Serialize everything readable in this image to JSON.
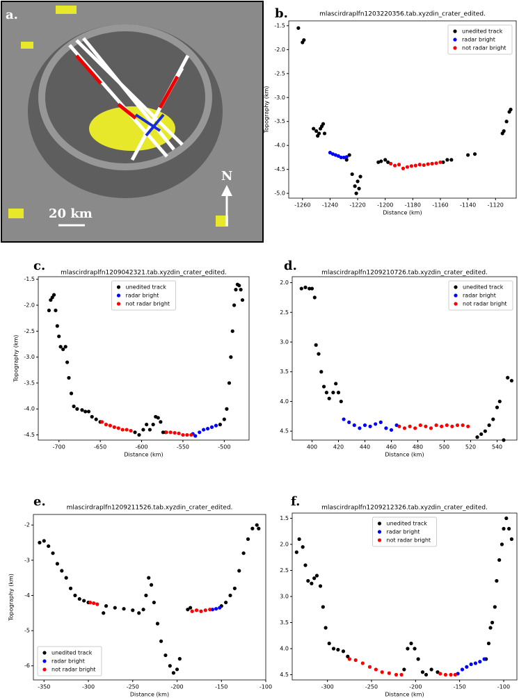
{
  "image_panel": {
    "label": "a.",
    "scale": "20 km",
    "north": "N"
  },
  "chart_data": [
    {
      "type": "scatter",
      "panel_label": "b.",
      "title": "mlascirdraplfn1203220356.tab.xyzdin_crater_edited.",
      "x_label": "Distance (km)",
      "y_label": "Topography (km)",
      "legend": "upper right",
      "xlim": [
        -1270,
        -1105
      ],
      "ylim": [
        -5.1,
        -1.4
      ],
      "xticks": [
        -1260,
        -1240,
        -1220,
        -1200,
        -1180,
        -1160,
        -1140,
        -1120
      ],
      "yticks": [
        -1.5,
        {
          "value": -2,
          "label": "-2.0"
        },
        -2.5,
        {
          "value": -3,
          "label": "-3.0"
        },
        -3.5,
        {
          "value": -4,
          "label": "-4.0"
        },
        -4.5,
        {
          "value": -5,
          "label": "-5.0"
        }
      ],
      "series": [
        {
          "name": "unedited track",
          "color": "#000000",
          "x": [
            -1263,
            -1260,
            -1259,
            -1252,
            -1250,
            -1249,
            -1248,
            -1247,
            -1246,
            -1245,
            -1244,
            -1228,
            -1226,
            -1224,
            -1222,
            -1221,
            -1220,
            -1219,
            -1218,
            -1205,
            -1203,
            -1200,
            -1198,
            -1158,
            -1155,
            -1152,
            -1140,
            -1135,
            -1115,
            -1114,
            -1112,
            -1110,
            -1109
          ],
          "values": [
            -1.55,
            -1.85,
            -1.8,
            -3.65,
            -3.7,
            -3.8,
            -3.75,
            -3.65,
            -3.6,
            -3.55,
            -3.75,
            -4.3,
            -4.2,
            -4.6,
            -4.85,
            -5.0,
            -4.75,
            -4.9,
            -4.65,
            -4.35,
            -4.33,
            -4.3,
            -4.35,
            -4.35,
            -4.3,
            -4.3,
            -4.2,
            -4.18,
            -3.75,
            -3.7,
            -3.5,
            -3.3,
            -3.25
          ]
        },
        {
          "name": "radar bright",
          "color": "#0000ff",
          "x": [
            -1240,
            -1238,
            -1236,
            -1234,
            -1232,
            -1230,
            -1228
          ],
          "values": [
            -4.15,
            -4.18,
            -4.2,
            -4.22,
            -4.25,
            -4.25,
            -4.24
          ]
        },
        {
          "name": "not radar bright",
          "color": "#ff0000",
          "x": [
            -1196,
            -1193,
            -1190,
            -1187,
            -1184,
            -1181,
            -1178,
            -1175,
            -1172,
            -1169,
            -1166,
            -1163,
            -1160
          ],
          "values": [
            -4.38,
            -4.42,
            -4.4,
            -4.48,
            -4.45,
            -4.43,
            -4.42,
            -4.4,
            -4.41,
            -4.39,
            -4.38,
            -4.37,
            -4.35
          ]
        }
      ]
    },
    {
      "type": "scatter",
      "panel_label": "c.",
      "title": "mlascirdraplfn1209042321.tab.xyzdin_crater_edited.",
      "x_label": "Distance (km)",
      "y_label": "Topography (km)",
      "legend": "upper center",
      "xlim": [
        -725,
        -470
      ],
      "ylim": [
        -4.6,
        -1.45
      ],
      "xticks": [
        -700,
        -650,
        -600,
        -550,
        -500
      ],
      "yticks": [
        -1.5,
        {
          "value": -2,
          "label": "-2.0"
        },
        -2.5,
        {
          "value": -3,
          "label": "-3.0"
        },
        -3.5,
        {
          "value": -4,
          "label": "-4.0"
        },
        -4.5
      ],
      "series": [
        {
          "name": "unedited track",
          "color": "#000000",
          "x": [
            -712,
            -710,
            -708,
            -706,
            -704,
            -702,
            -700,
            -698,
            -695,
            -692,
            -690,
            -688,
            -685,
            -682,
            -678,
            -672,
            -668,
            -664,
            -660,
            -655,
            -650,
            -608,
            -603,
            -598,
            -594,
            -590,
            -586,
            -583,
            -580,
            -577,
            -574,
            -571,
            -505,
            -500,
            -497,
            -494,
            -492,
            -490,
            -488,
            -486,
            -484,
            -482,
            -480,
            -478
          ],
          "values": [
            -2.1,
            -1.9,
            -1.85,
            -1.8,
            -2.1,
            -2.4,
            -2.6,
            -2.8,
            -2.85,
            -2.8,
            -3.1,
            -3.4,
            -3.7,
            -3.95,
            -4.0,
            -4.02,
            -4.05,
            -4.05,
            -4.15,
            -4.2,
            -4.25,
            -4.45,
            -4.5,
            -4.4,
            -4.3,
            -4.4,
            -4.3,
            -4.15,
            -4.17,
            -4.25,
            -4.45,
            -4.45,
            -4.3,
            -4.2,
            -4.0,
            -3.5,
            -3.0,
            -2.5,
            -2.0,
            -1.7,
            -1.6,
            -1.62,
            -1.7,
            -1.9
          ]
        },
        {
          "name": "radar bright",
          "color": "#0000ff",
          "x": [
            -538,
            -535,
            -530,
            -525,
            -520,
            -515,
            -510
          ],
          "values": [
            -4.48,
            -4.52,
            -4.45,
            -4.4,
            -4.38,
            -4.35,
            -4.32
          ]
        },
        {
          "name": "not radar bright",
          "color": "#ff0000",
          "x": [
            -648,
            -643,
            -638,
            -633,
            -628,
            -623,
            -618,
            -613,
            -570,
            -565,
            -560,
            -555,
            -550,
            -545,
            -540
          ],
          "values": [
            -4.25,
            -4.3,
            -4.32,
            -4.35,
            -4.37,
            -4.4,
            -4.4,
            -4.42,
            -4.45,
            -4.45,
            -4.46,
            -4.47,
            -4.5,
            -4.5,
            -4.5
          ]
        }
      ]
    },
    {
      "type": "scatter",
      "panel_label": "d.",
      "title": "mlascirdraplfn1209210726.tab.xyzdin_crater_edited.",
      "x_label": "Distance (km)",
      "legend": "upper right",
      "xlim": [
        385,
        555
      ],
      "ylim": [
        -4.65,
        -1.9
      ],
      "xticks": [
        400,
        420,
        440,
        460,
        480,
        500,
        520,
        540
      ],
      "yticks": [
        {
          "value": -2,
          "label": "2.0"
        },
        {
          "value": -2.5,
          "label": "2.5"
        },
        {
          "value": -3,
          "label": "3.0"
        },
        {
          "value": -3.5,
          "label": "3.5"
        },
        {
          "value": -4,
          "label": "4.0"
        },
        {
          "value": -4.5,
          "label": "4.5"
        }
      ],
      "series": [
        {
          "name": "unedited track",
          "color": "#000000",
          "x": [
            392,
            395,
            398,
            400,
            402,
            403,
            405,
            407,
            409,
            411,
            413,
            416,
            418,
            420,
            422,
            525,
            528,
            531,
            534,
            537,
            540,
            542,
            545,
            548,
            551
          ],
          "values": [
            -2.1,
            -2.08,
            -2.1,
            -2.1,
            -2.25,
            -3.05,
            -3.2,
            -3.5,
            -3.75,
            -3.85,
            -3.95,
            -3.85,
            -3.7,
            -3.85,
            -4.0,
            -4.6,
            -4.55,
            -4.5,
            -4.4,
            -4.3,
            -4.1,
            -4.0,
            -4.65,
            -3.6,
            -3.65
          ]
        },
        {
          "name": "radar bright",
          "color": "#0000ff",
          "x": [
            424,
            428,
            432,
            436,
            440,
            444,
            448,
            452,
            456,
            460,
            464
          ],
          "values": [
            -4.3,
            -4.35,
            -4.4,
            -4.45,
            -4.4,
            -4.42,
            -4.38,
            -4.35,
            -4.45,
            -4.48,
            -4.4
          ]
        },
        {
          "name": "not radar bright",
          "color": "#ff0000",
          "x": [
            466,
            470,
            474,
            478,
            482,
            486,
            490,
            494,
            498,
            502,
            506,
            510,
            514,
            518
          ],
          "values": [
            -4.42,
            -4.45,
            -4.42,
            -4.45,
            -4.4,
            -4.42,
            -4.45,
            -4.4,
            -4.42,
            -4.4,
            -4.42,
            -4.4,
            -4.4,
            -4.42
          ]
        }
      ]
    },
    {
      "type": "scatter",
      "panel_label": "e.",
      "title": "mlascirdraplfn1209211526.tab.xyzdin_crater_edited.",
      "x_label": "Distance (km)",
      "y_label": "Topography (km)",
      "legend": "lower left",
      "xlim": [
        -362,
        -100
      ],
      "ylim": [
        -6.4,
        -1.7
      ],
      "xticks": [
        -350,
        -300,
        -250,
        -200,
        -150,
        -100
      ],
      "yticks": [
        -2,
        -3,
        -4,
        -5,
        -6
      ],
      "series": [
        {
          "name": "unedited track",
          "color": "#000000",
          "x": [
            -355,
            -350,
            -345,
            -340,
            -335,
            -330,
            -325,
            -320,
            -315,
            -310,
            -305,
            -300,
            -283,
            -280,
            -270,
            -260,
            -250,
            -243,
            -238,
            -235,
            -232,
            -229,
            -226,
            -222,
            -218,
            -213,
            -208,
            -204,
            -200,
            -197,
            -188,
            -185,
            -150,
            -145,
            -140,
            -135,
            -130,
            -125,
            -120,
            -115,
            -110,
            -108
          ],
          "values": [
            -2.5,
            -2.45,
            -2.6,
            -2.8,
            -3.1,
            -3.3,
            -3.5,
            -3.8,
            -4.0,
            -4.1,
            -4.15,
            -4.2,
            -4.5,
            -4.3,
            -4.35,
            -4.38,
            -4.42,
            -4.5,
            -4.4,
            -4.0,
            -3.5,
            -3.7,
            -4.2,
            -4.8,
            -5.3,
            -5.7,
            -6.0,
            -6.2,
            -6.1,
            -5.8,
            -4.4,
            -4.35,
            -4.3,
            -4.2,
            -4.0,
            -3.8,
            -3.3,
            -2.8,
            -2.4,
            -2.1,
            -2.0,
            -2.1
          ]
        },
        {
          "name": "radar bright",
          "color": "#0000ff",
          "x": [
            -160,
            -156,
            -152
          ],
          "values": [
            -4.4,
            -4.38,
            -4.35
          ]
        },
        {
          "name": "not radar bright",
          "color": "#ff0000",
          "x": [
            -298,
            -294,
            -290,
            -183,
            -178,
            -173,
            -168,
            -163
          ],
          "values": [
            -4.2,
            -4.22,
            -4.25,
            -4.45,
            -4.42,
            -4.45,
            -4.42,
            -4.4
          ]
        }
      ]
    },
    {
      "type": "scatter",
      "panel_label": "f.",
      "title": "mlascirdraplfn1209212326.tab.xyzdin_crater_edited.",
      "x_label": "Distance (km)",
      "legend": "upper center",
      "xlim": [
        -340,
        -85
      ],
      "ylim": [
        -4.6,
        -1.4
      ],
      "xticks": [
        -300,
        -250,
        -200,
        -150,
        -100
      ],
      "yticks": [
        {
          "value": -1.5,
          "label": "1.5"
        },
        {
          "value": -2,
          "label": "2.0"
        },
        {
          "value": -2.5,
          "label": "2.5"
        },
        {
          "value": -3,
          "label": "3.0"
        },
        {
          "value": -3.5,
          "label": "3.5"
        },
        {
          "value": -4,
          "label": "4.0"
        },
        {
          "value": -4.5,
          "label": "4.5"
        }
      ],
      "series": [
        {
          "name": "unedited track",
          "color": "#000000",
          "x": [
            -335,
            -332,
            -328,
            -325,
            -322,
            -318,
            -315,
            -312,
            -308,
            -305,
            -302,
            -298,
            -293,
            -288,
            -282,
            -277,
            -213,
            -209,
            -205,
            -201,
            -197,
            -192,
            -188,
            -182,
            -175,
            -120,
            -117,
            -115,
            -113,
            -110,
            -108,
            -105,
            -102,
            -100,
            -97,
            -94,
            -91
          ],
          "values": [
            -2.15,
            -1.9,
            -2.05,
            -2.4,
            -2.7,
            -2.75,
            -2.65,
            -2.6,
            -2.8,
            -3.2,
            -3.6,
            -3.9,
            -4.0,
            -4.02,
            -4.05,
            -4.15,
            -4.4,
            -4.0,
            -3.9,
            -4.0,
            -4.2,
            -4.45,
            -4.5,
            -4.4,
            -4.45,
            -4.2,
            -3.9,
            -3.6,
            -3.5,
            -3.2,
            -2.7,
            -2.3,
            -2.0,
            -1.7,
            -1.5,
            -1.7,
            -1.9
          ]
        },
        {
          "name": "radar bright",
          "color": "#0000ff",
          "x": [
            -152,
            -147,
            -142,
            -137,
            -132,
            -127,
            -122
          ],
          "values": [
            -4.48,
            -4.4,
            -4.35,
            -4.3,
            -4.28,
            -4.25,
            -4.2
          ]
        },
        {
          "name": "not radar bright",
          "color": "#ff0000",
          "x": [
            -275,
            -268,
            -260,
            -252,
            -245,
            -238,
            -230,
            -222,
            -216,
            -172,
            -166,
            -160,
            -155
          ],
          "values": [
            -4.2,
            -4.22,
            -4.28,
            -4.35,
            -4.4,
            -4.45,
            -4.47,
            -4.5,
            -4.5,
            -4.48,
            -4.5,
            -4.5,
            -4.5
          ]
        }
      ]
    }
  ]
}
